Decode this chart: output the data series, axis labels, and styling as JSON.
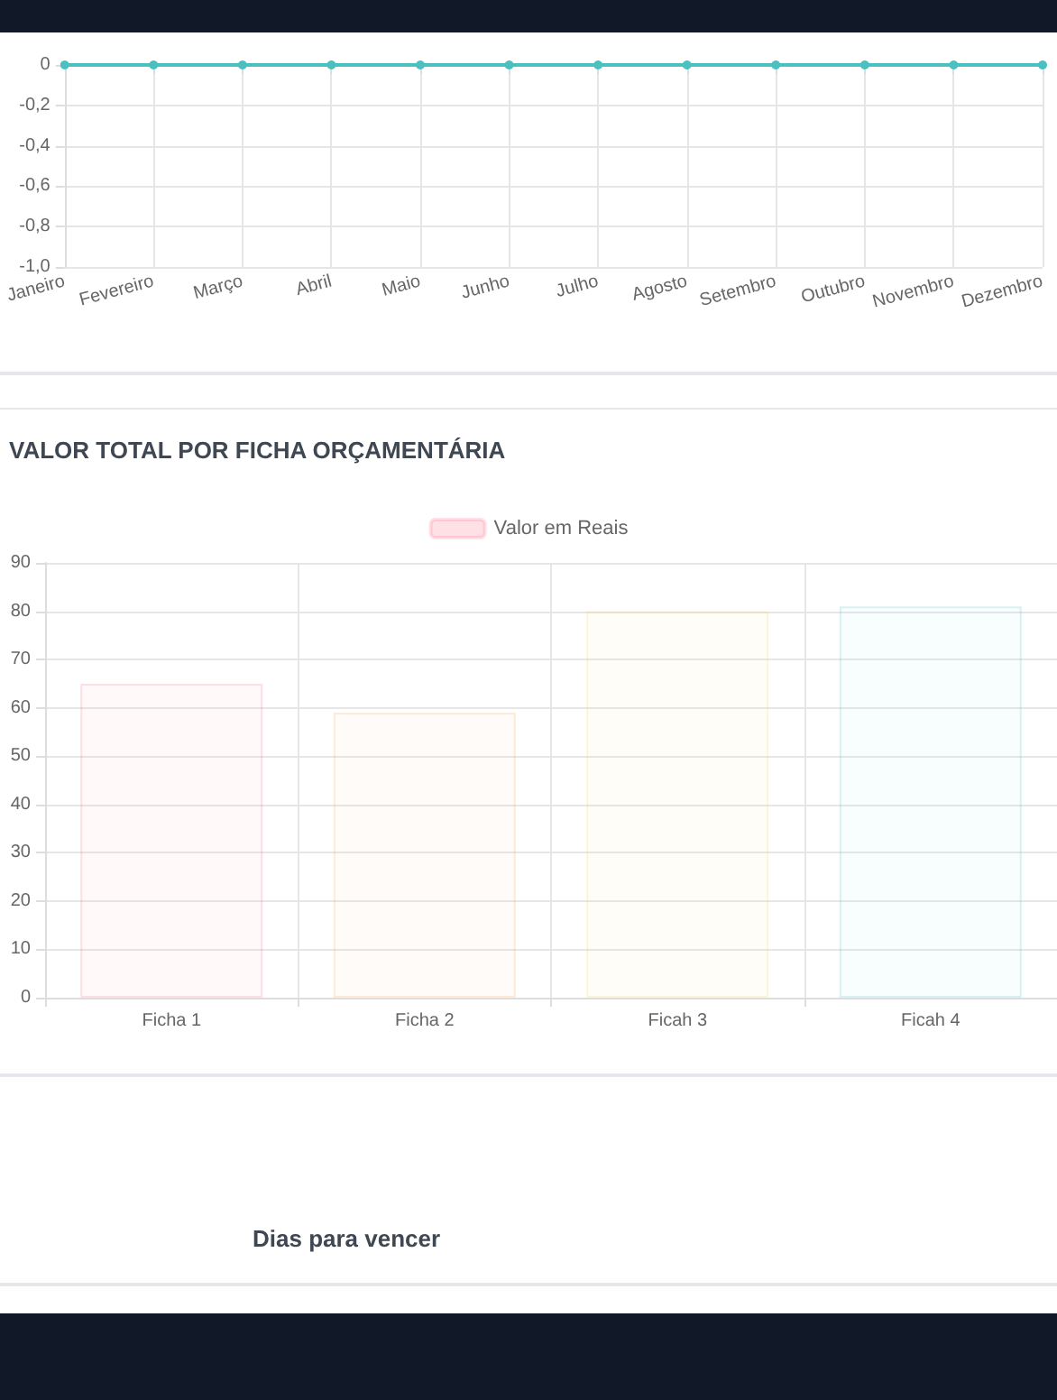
{
  "chart_data": [
    {
      "type": "line",
      "categories": [
        "Janeiro",
        "Fevereiro",
        "Março",
        "Abril",
        "Maio",
        "Junho",
        "Julho",
        "Agosto",
        "Setembro",
        "Outubro",
        "Novembro",
        "Dezembro"
      ],
      "series": [
        {
          "color": "#4bc0c0",
          "values": [
            0,
            0,
            0,
            0,
            0,
            0,
            0,
            0,
            0,
            0,
            0,
            0
          ]
        }
      ],
      "ylim": [
        -1,
        0
      ],
      "yticks": [
        {
          "value": -1,
          "label": "-1,0"
        },
        {
          "value": -0.8,
          "label": "-0,8"
        },
        {
          "value": -0.6,
          "label": "-0,6"
        },
        {
          "value": -0.4,
          "label": "-0,4"
        },
        {
          "value": -0.2,
          "label": "-0,2"
        },
        0
      ],
      "grid": true,
      "marker": "circle",
      "legend": false
    },
    {
      "type": "bar",
      "title": "VALOR TOTAL POR FICHA ORÇAMENTÁRIA",
      "categories": [
        "Ficha 1",
        "Ficha 2",
        "Ficah 3",
        "Ficah 4"
      ],
      "series": [
        {
          "name": "Valor em Reais",
          "color": "#ff6384",
          "colors": [
            "#ff6384",
            "#ff9f40",
            "#ffcd56",
            "#4bc0c0"
          ],
          "values": [
            65,
            59,
            80,
            81
          ]
        }
      ],
      "ylim": [
        0,
        90
      ],
      "yticks": [
        0,
        10,
        20,
        30,
        40,
        50,
        60,
        70,
        80,
        90
      ],
      "grid": true,
      "legend": "top"
    },
    {
      "type": "other",
      "title": "Dias para vencer"
    }
  ]
}
